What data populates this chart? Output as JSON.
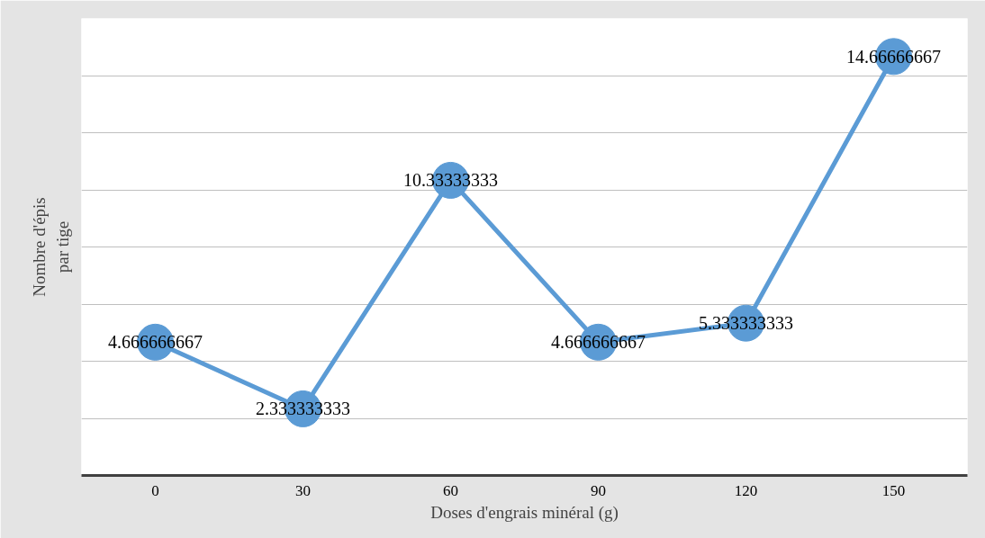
{
  "chart_data": {
    "type": "line",
    "xlabel": "Doses d'engrais minéral (g)",
    "ylabel": "Nombre d'épis par tige",
    "categories": [
      "0",
      "30",
      "60",
      "90",
      "120",
      "150"
    ],
    "series": [
      {
        "color": "#5b9bd5",
        "values": [
          4.666666667,
          2.333333333,
          10.33333333,
          4.666666667,
          5.333333333,
          14.66666667
        ]
      }
    ],
    "ylim": [
      0,
      16
    ],
    "yticks": [
      {
        "value": 0,
        "label": null
      },
      {
        "value": 2,
        "label": null
      },
      {
        "value": 4,
        "label": null
      },
      {
        "value": 6,
        "label": null
      },
      {
        "value": 8,
        "label": null
      },
      {
        "value": 10,
        "label": null
      },
      {
        "value": 12,
        "label": null
      },
      {
        "value": 14,
        "label": null
      },
      {
        "value": 16,
        "label": null
      }
    ],
    "tick_labels": "x",
    "grid": "y",
    "marker": "circle",
    "line_style": "solid",
    "data_labels": true
  }
}
